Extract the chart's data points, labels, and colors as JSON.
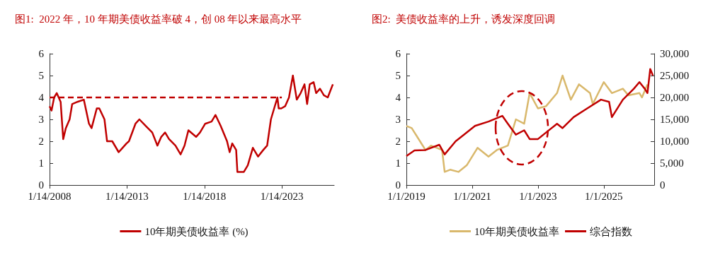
{
  "chart_data": [
    {
      "type": "line",
      "title": "图1:  2022 年，10 年期美债收益率破 4，创 08 年以来最高水平",
      "x": [
        "2008-01-14",
        "2008-03",
        "2008-05",
        "2008-07",
        "2008-10",
        "2008-12",
        "2009-02",
        "2009-05",
        "2009-07",
        "2009-11",
        "2010-04",
        "2010-08",
        "2010-10",
        "2011-02",
        "2011-04",
        "2011-08",
        "2011-10",
        "2012-02",
        "2012-07",
        "2012-10",
        "2013-01",
        "2013-03",
        "2013-08",
        "2013-11",
        "2014-04",
        "2014-09",
        "2015-01",
        "2015-04",
        "2015-07",
        "2015-10",
        "2016-03",
        "2016-07",
        "2016-10",
        "2017-01",
        "2017-07",
        "2017-10",
        "2018-02",
        "2018-07",
        "2018-10",
        "2019-02",
        "2019-07",
        "2019-09",
        "2019-11",
        "2020-02",
        "2020-03",
        "2020-08",
        "2020-11",
        "2021-03",
        "2021-07",
        "2021-11",
        "2022-02",
        "2022-05",
        "2022-10",
        "2022-11",
        "2023-01",
        "2023-04",
        "2023-07",
        "2023-10",
        "2024-01",
        "2024-04",
        "2024-07",
        "2024-09",
        "2024-11",
        "2025-02",
        "2025-04",
        "2025-07",
        "2025-10",
        "2026-01",
        "2026-03",
        "2026-05"
      ],
      "series": [
        {
          "name": "10年期美债收益率 (%)",
          "color": "#c00000",
          "values": [
            3.6,
            3.4,
            4.0,
            4.2,
            3.8,
            2.1,
            2.6,
            3.0,
            3.7,
            3.8,
            3.9,
            2.8,
            2.6,
            3.5,
            3.5,
            3.0,
            2.0,
            2.0,
            1.5,
            1.7,
            1.9,
            2.0,
            2.8,
            3.0,
            2.7,
            2.4,
            1.8,
            2.2,
            2.4,
            2.1,
            1.8,
            1.4,
            1.8,
            2.5,
            2.2,
            2.4,
            2.8,
            2.9,
            3.2,
            2.7,
            2.0,
            1.5,
            1.9,
            1.6,
            0.6,
            0.6,
            0.9,
            1.7,
            1.3,
            1.6,
            1.8,
            3.0,
            4.0,
            3.5,
            3.5,
            3.6,
            4.0,
            5.0,
            3.9,
            4.2,
            4.6,
            3.7,
            4.6,
            4.7,
            4.2,
            4.4,
            4.1,
            4.0,
            4.3,
            4.6
          ]
        },
        {
          "x": [
            "2008-01-14",
            "2023-01-14"
          ],
          "color": "#c00000",
          "line_style": "dashed",
          "values": [
            4,
            4
          ]
        }
      ],
      "xlim": [
        "2008-01-14",
        "2026-06-01"
      ],
      "xticks": [
        {
          "value": "2008-01-14",
          "label": "1/14/2008"
        },
        {
          "value": "2013-01-14",
          "label": "1/14/2013"
        },
        {
          "value": "2018-01-14",
          "label": "1/14/2018"
        },
        {
          "value": "2023-01-14",
          "label": "1/14/2023"
        }
      ],
      "ylim": [
        0,
        6
      ],
      "yticks": [
        0,
        1,
        2,
        3,
        4,
        5,
        6
      ],
      "grid": false,
      "legend": "bottom"
    },
    {
      "type": "line",
      "title": "图2:  美债收益率的上升，诱发深度回调",
      "series": [
        {
          "name": "10年期美债收益率",
          "color": "#d9b86c",
          "x": [
            "2019-01",
            "2019-03",
            "2019-06",
            "2019-08",
            "2019-10",
            "2020-02",
            "2020-03",
            "2020-05",
            "2020-08",
            "2020-11",
            "2021-03",
            "2021-07",
            "2021-10",
            "2022-02",
            "2022-05",
            "2022-08",
            "2022-10",
            "2023-01",
            "2023-04",
            "2023-08",
            "2023-10",
            "2024-01",
            "2024-04",
            "2024-08",
            "2024-09",
            "2025-01",
            "2025-04",
            "2025-08",
            "2025-10",
            "2026-02",
            "2026-03",
            "2026-05"
          ],
          "values": [
            2.7,
            2.6,
            2.0,
            1.6,
            1.8,
            1.6,
            0.6,
            0.7,
            0.6,
            0.9,
            1.7,
            1.3,
            1.6,
            1.8,
            3.0,
            2.8,
            4.2,
            3.5,
            3.6,
            4.2,
            5.0,
            3.9,
            4.6,
            4.2,
            3.7,
            4.7,
            4.2,
            4.4,
            4.1,
            4.2,
            4.0,
            4.6
          ]
        },
        {
          "name": "综合指数",
          "color": "#c00000",
          "axis": "y2",
          "x": [
            "2019-01",
            "2019-04",
            "2019-08",
            "2020-01",
            "2020-03",
            "2020-07",
            "2020-10",
            "2021-02",
            "2021-07",
            "2021-12",
            "2022-02",
            "2022-05",
            "2022-08",
            "2022-10",
            "2023-01",
            "2023-04",
            "2023-08",
            "2023-10",
            "2024-02",
            "2024-07",
            "2024-12",
            "2025-03",
            "2025-04",
            "2025-08",
            "2025-12",
            "2026-02",
            "2026-04",
            "2026-05",
            "2026-06",
            "2026-07"
          ],
          "values": [
            6600,
            7900,
            8000,
            9200,
            7000,
            10000,
            11500,
            13500,
            14500,
            15800,
            14000,
            11500,
            12500,
            10500,
            10500,
            12000,
            14000,
            13000,
            15500,
            17500,
            19500,
            19000,
            15500,
            19500,
            22000,
            23500,
            22000,
            21000,
            26500,
            25000
          ]
        }
      ],
      "xlim": [
        "2019-01-01",
        "2026-07-15"
      ],
      "xticks": [
        {
          "value": "2019-01-01",
          "label": "1/1/2019"
        },
        {
          "value": "2021-01-01",
          "label": "1/1/2021"
        },
        {
          "value": "2023-01-01",
          "label": "1/1/2023"
        },
        {
          "value": "2025-01-01",
          "label": "1/1/2025"
        }
      ],
      "ylim": [
        0,
        6
      ],
      "yticks": [
        0,
        1,
        2,
        3,
        4,
        5,
        6
      ],
      "y2lim": [
        0,
        30000
      ],
      "y2ticks": [
        0,
        {
          "value": 5000,
          "label": "5,000"
        },
        {
          "value": 10000,
          "label": "10,000"
        },
        {
          "value": 15000,
          "label": "15,000"
        },
        {
          "value": 20000,
          "label": "20,000"
        },
        {
          "value": 25000,
          "label": "25,000"
        },
        {
          "value": 30000,
          "label": "30,000"
        }
      ],
      "grid": false,
      "legend": "bottom"
    }
  ]
}
